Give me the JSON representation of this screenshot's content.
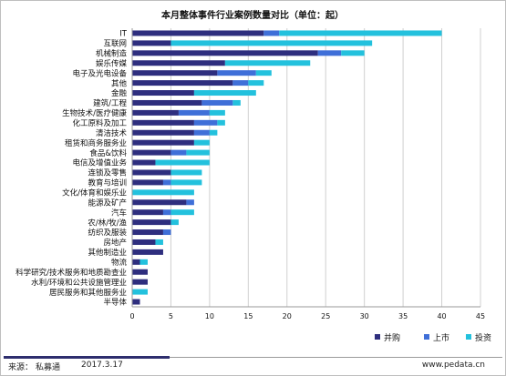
{
  "colors": {
    "acquisition": "#2e2e7e",
    "ipo": "#3f6fd8",
    "investment": "#23c1dd",
    "gridline": "#d0d0d0",
    "axis": "#9a9a9a",
    "text": "#111111"
  },
  "footer": {
    "source_label": "来源：",
    "source_name": "私募通",
    "date": "2017.3.17",
    "website": "www.pedata.cn"
  },
  "chart_data": {
    "type": "bar",
    "orientation": "horizontal",
    "stacked": true,
    "title": "本月整体事件行业案例数量对比（单位：起）",
    "xlabel": "",
    "ylabel": "",
    "xlim": [
      0,
      45
    ],
    "xticks": [
      0,
      5,
      10,
      15,
      20,
      25,
      30,
      35,
      40,
      45
    ],
    "grid": "vertical",
    "legend_position": "bottom-right",
    "categories": [
      "IT",
      "互联网",
      "机械制造",
      "娱乐传媒",
      "电子及光电设备",
      "其他",
      "金融",
      "建筑/工程",
      "生物技术/医疗健康",
      "化工原料及加工",
      "清洁技术",
      "租赁和商务服务业",
      "食品&饮料",
      "电信及增值业务",
      "连锁及零售",
      "教育与培训",
      "文化/体育和娱乐业",
      "能源及矿产",
      "汽车",
      "农/林/牧/渔",
      "纺织及服装",
      "房地产",
      "其他制造业",
      "物流",
      "科学研究/技术服务和地质勘查业",
      "水利/环境和公共设施管理业",
      "居民服务和其他服务业",
      "半导体"
    ],
    "series": [
      {
        "name": "并购",
        "values": [
          17,
          5,
          24,
          12,
          11,
          13,
          8,
          9,
          6,
          8,
          8,
          8,
          5,
          3,
          5,
          4,
          0,
          7,
          4,
          5,
          4,
          3,
          4,
          1,
          2,
          2,
          0,
          1
        ]
      },
      {
        "name": "上市",
        "values": [
          2,
          0,
          3,
          0,
          5,
          2,
          0,
          4,
          4,
          3,
          2,
          0,
          2,
          0,
          0,
          1,
          0,
          1,
          1,
          0,
          1,
          0,
          0,
          0,
          0,
          0,
          0,
          0
        ]
      },
      {
        "name": "投资",
        "values": [
          21,
          26,
          3,
          11,
          2,
          2,
          8,
          1,
          2,
          1,
          1,
          2,
          3,
          7,
          4,
          4,
          8,
          0,
          3,
          1,
          0,
          1,
          0,
          1,
          0,
          0,
          2,
          0
        ]
      }
    ]
  }
}
